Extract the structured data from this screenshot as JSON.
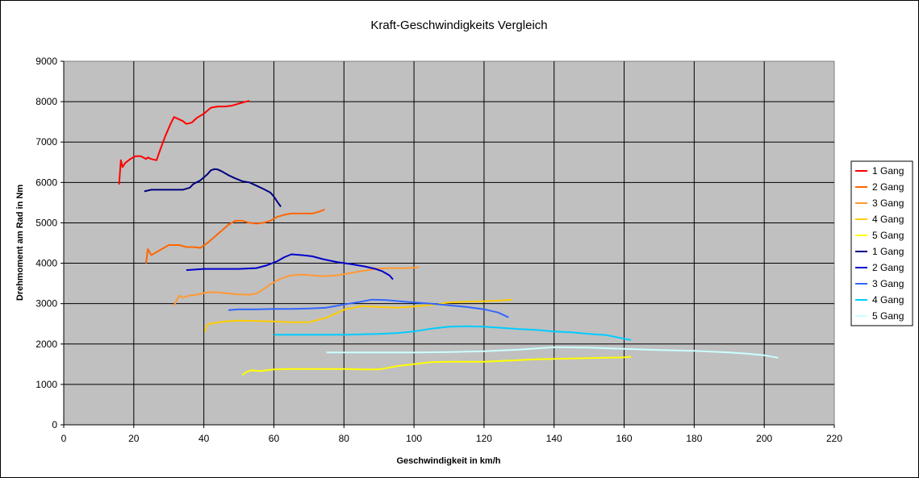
{
  "chart_data": {
    "type": "line",
    "title": "Kraft-Geschwindigkeits Vergleich",
    "xlabel": "Geschwindigkeit in km/h",
    "ylabel": "Drehmoment am Rad in Nm",
    "xlim": [
      0,
      220
    ],
    "ylim": [
      0,
      9000
    ],
    "xticks": [
      0,
      20,
      40,
      60,
      80,
      100,
      120,
      140,
      160,
      180,
      200,
      220
    ],
    "yticks": [
      0,
      1000,
      2000,
      3000,
      4000,
      5000,
      6000,
      7000,
      8000,
      9000
    ],
    "grid": true,
    "plot_background": "#c0c0c0",
    "legend_position": "right",
    "series": [
      {
        "name": "1 Gang",
        "color": "#ff0000",
        "x": [
          15.8,
          16,
          16.3,
          16.8,
          17.5,
          19,
          20.5,
          22,
          23.5,
          24,
          25,
          26.5,
          27.5,
          29,
          30.5,
          31.5,
          32.5,
          34,
          35,
          36.5,
          38,
          40,
          42,
          44,
          46,
          48,
          50,
          52,
          53
        ],
        "y": [
          5950,
          6200,
          6550,
          6380,
          6480,
          6580,
          6650,
          6650,
          6580,
          6620,
          6580,
          6550,
          6800,
          7150,
          7450,
          7620,
          7580,
          7520,
          7450,
          7480,
          7600,
          7700,
          7850,
          7880,
          7880,
          7900,
          7950,
          8000,
          8020
        ]
      },
      {
        "name": "2 Gang",
        "color": "#ff6600",
        "x": [
          23.5,
          24,
          25,
          26,
          28,
          30,
          33,
          35,
          37,
          39,
          41,
          43,
          45,
          47,
          49,
          51,
          53,
          55,
          57,
          59,
          61,
          63,
          65,
          67,
          69,
          71,
          73,
          74.5
        ],
        "y": [
          4000,
          4350,
          4200,
          4250,
          4350,
          4450,
          4450,
          4400,
          4400,
          4380,
          4500,
          4650,
          4800,
          4950,
          5050,
          5050,
          5000,
          4980,
          5000,
          5050,
          5150,
          5200,
          5230,
          5230,
          5230,
          5230,
          5280,
          5330
        ]
      },
      {
        "name": "3 Gang",
        "color": "#ff9933",
        "x": [
          31.5,
          32,
          33,
          34,
          36,
          38,
          41,
          44,
          47,
          50,
          53,
          55,
          57,
          59,
          62,
          65,
          68,
          71,
          74,
          78,
          82,
          86,
          90,
          94,
          98,
          101.5
        ],
        "y": [
          2950,
          3050,
          3200,
          3150,
          3200,
          3220,
          3280,
          3280,
          3250,
          3230,
          3220,
          3250,
          3350,
          3480,
          3620,
          3700,
          3720,
          3700,
          3680,
          3700,
          3760,
          3820,
          3870,
          3880,
          3880,
          3900
        ]
      },
      {
        "name": "4 Gang",
        "color": "#ffcc00",
        "x": [
          40.3,
          40.8,
          41.5,
          43,
          46,
          50,
          55,
          60,
          65,
          70,
          75,
          80,
          85,
          90,
          95,
          100,
          105,
          110,
          115,
          120,
          125,
          128
        ],
        "y": [
          2300,
          2450,
          2500,
          2520,
          2560,
          2580,
          2570,
          2560,
          2540,
          2540,
          2650,
          2850,
          2940,
          2920,
          2900,
          2930,
          2970,
          3030,
          3050,
          3060,
          3080,
          3100
        ]
      },
      {
        "name": "5 Gang",
        "color": "#ffff00",
        "x": [
          51,
          52,
          53.5,
          56,
          60,
          65,
          70,
          75,
          80,
          85,
          90,
          95,
          100,
          105,
          110,
          115,
          120,
          125,
          130,
          135,
          140,
          145,
          150,
          155,
          160,
          162
        ],
        "y": [
          1230,
          1300,
          1350,
          1330,
          1370,
          1380,
          1380,
          1380,
          1380,
          1370,
          1370,
          1450,
          1500,
          1550,
          1560,
          1560,
          1560,
          1580,
          1600,
          1620,
          1630,
          1640,
          1650,
          1660,
          1670,
          1680
        ]
      },
      {
        "name": "1 Gang",
        "color": "#000080",
        "x": [
          23,
          25,
          28,
          31,
          34,
          36,
          37,
          39,
          41,
          42,
          43,
          44,
          45,
          47,
          49,
          51,
          53,
          55,
          57,
          59,
          60,
          61,
          62
        ],
        "y": [
          5780,
          5820,
          5820,
          5820,
          5820,
          5870,
          5960,
          6050,
          6200,
          6300,
          6330,
          6320,
          6280,
          6180,
          6100,
          6030,
          6000,
          5920,
          5840,
          5750,
          5650,
          5520,
          5400
        ]
      },
      {
        "name": "2 Gang",
        "color": "#0000cc",
        "x": [
          35,
          40,
          45,
          50,
          55,
          58,
          61,
          63,
          65,
          68,
          71,
          74,
          78,
          82,
          86,
          89,
          91,
          93,
          94
        ],
        "y": [
          3830,
          3860,
          3860,
          3860,
          3880,
          3950,
          4050,
          4150,
          4220,
          4200,
          4170,
          4100,
          4030,
          3980,
          3920,
          3860,
          3800,
          3700,
          3600
        ]
      },
      {
        "name": "3 Gang",
        "color": "#3366ff",
        "x": [
          47,
          50,
          55,
          60,
          65,
          70,
          75,
          80,
          85,
          88,
          92,
          96,
          100,
          105,
          110,
          115,
          120,
          124,
          127
        ],
        "y": [
          2840,
          2860,
          2860,
          2870,
          2870,
          2880,
          2900,
          2980,
          3050,
          3100,
          3090,
          3060,
          3030,
          3000,
          2960,
          2920,
          2860,
          2780,
          2660
        ]
      },
      {
        "name": "4 Gang",
        "color": "#00ccff",
        "x": [
          60,
          65,
          70,
          75,
          80,
          85,
          90,
          95,
          100,
          105,
          110,
          115,
          120,
          125,
          130,
          135,
          140,
          145,
          150,
          155,
          159,
          162
        ],
        "y": [
          2230,
          2230,
          2230,
          2230,
          2230,
          2240,
          2250,
          2270,
          2310,
          2380,
          2430,
          2440,
          2430,
          2400,
          2370,
          2350,
          2310,
          2290,
          2250,
          2220,
          2150,
          2100
        ]
      },
      {
        "name": "5 Gang",
        "color": "#ccffff",
        "x": [
          75,
          80,
          90,
          100,
          110,
          120,
          130,
          140,
          150,
          160,
          170,
          180,
          190,
          195,
          200,
          204
        ],
        "y": [
          1790,
          1790,
          1790,
          1790,
          1800,
          1820,
          1860,
          1920,
          1910,
          1880,
          1850,
          1830,
          1790,
          1760,
          1720,
          1660
        ]
      }
    ]
  }
}
